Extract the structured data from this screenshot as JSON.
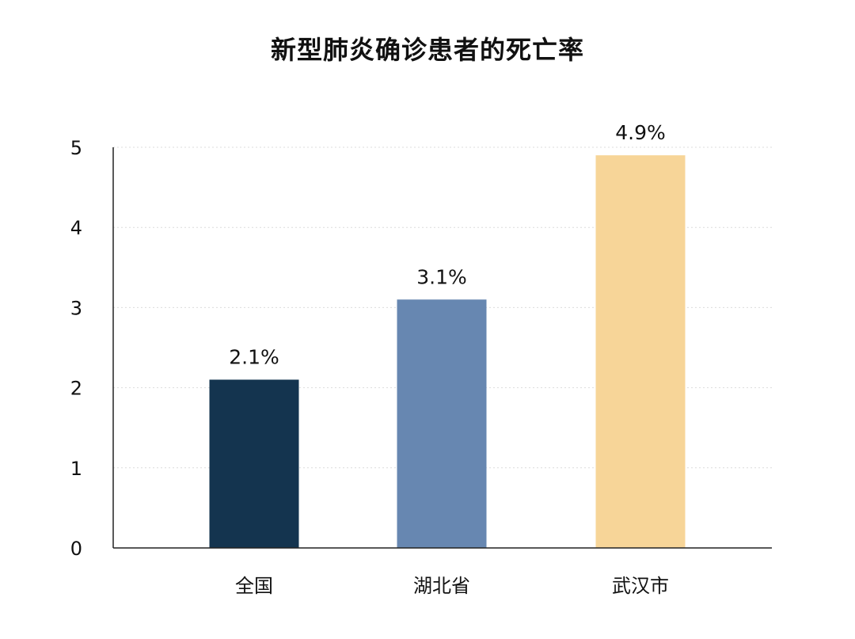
{
  "chart_data": {
    "type": "bar",
    "title": "新型肺炎确诊患者的死亡率",
    "categories": [
      "全国",
      "湖北省",
      "武汉市"
    ],
    "values": [
      2.1,
      3.1,
      4.9
    ],
    "value_labels": [
      "2.1%",
      "3.1%",
      "4.9%"
    ],
    "bar_colors": [
      "#14344f",
      "#6787b1",
      "#f7d598"
    ],
    "y_ticks": [
      "0",
      "1",
      "2",
      "3",
      "4",
      "5"
    ],
    "ylim": [
      0,
      5
    ],
    "grid": true,
    "grid_style": "dotted",
    "legend": "none"
  }
}
